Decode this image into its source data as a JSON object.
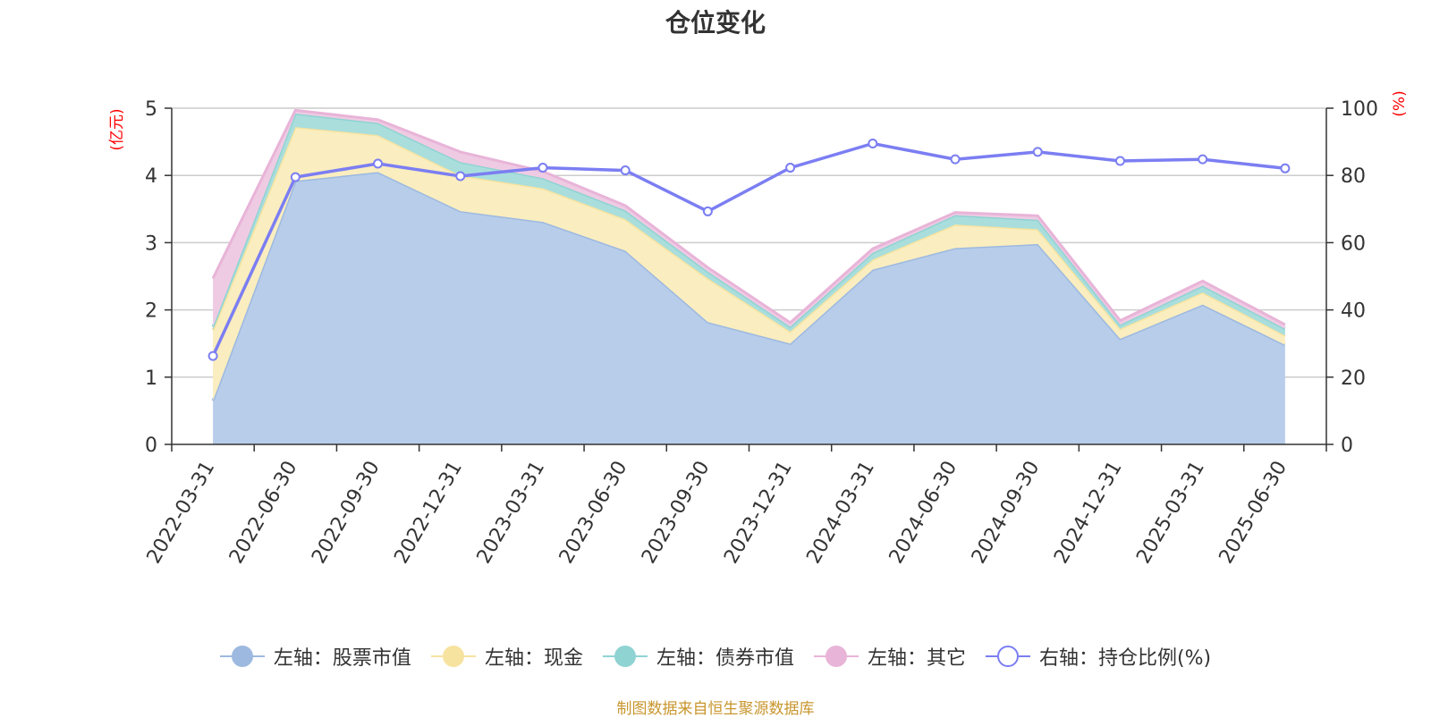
{
  "chart_data": {
    "type": "area",
    "title": "仓位变化",
    "left_unit": "(亿元)",
    "right_unit": "(%)",
    "source": "制图数据来自恒生聚源数据库",
    "x": [
      "2022-03-31",
      "2022-06-30",
      "2022-09-30",
      "2022-12-31",
      "2023-03-31",
      "2023-06-30",
      "2023-09-30",
      "2023-12-31",
      "2024-03-31",
      "2024-06-30",
      "2024-09-30",
      "2024-12-31",
      "2025-03-31",
      "2025-06-30"
    ],
    "left_axis": {
      "ylim": [
        0,
        5
      ],
      "ticks": [
        "0",
        "1",
        "2",
        "3",
        "4",
        "5"
      ]
    },
    "right_axis": {
      "ylim": [
        0,
        100
      ],
      "ticks": [
        "0",
        "20",
        "40",
        "60",
        "80",
        "100"
      ]
    },
    "stacked_series": [
      {
        "name": "左轴：股票市值",
        "color": "#9db9e0",
        "fill": "#b7cdea",
        "values": [
          0.65,
          3.92,
          4.05,
          3.47,
          3.31,
          2.88,
          1.82,
          1.5,
          2.6,
          2.92,
          2.98,
          1.57,
          2.08,
          1.48
        ]
      },
      {
        "name": "左轴：现金",
        "color": "#f7e3a0",
        "fill": "#faedbf",
        "values": [
          1.05,
          0.8,
          0.55,
          0.53,
          0.5,
          0.47,
          0.65,
          0.18,
          0.15,
          0.35,
          0.22,
          0.15,
          0.18,
          0.14
        ]
      },
      {
        "name": "左轴：债券市值",
        "color": "#8fd3d3",
        "fill": "#a9dedc",
        "values": [
          0.05,
          0.2,
          0.18,
          0.2,
          0.15,
          0.13,
          0.1,
          0.07,
          0.1,
          0.14,
          0.14,
          0.06,
          0.1,
          0.1
        ]
      },
      {
        "name": "左轴：其它",
        "color": "#e8b4d8",
        "fill": "#efcbe3",
        "values": [
          0.72,
          0.05,
          0.05,
          0.15,
          0.1,
          0.07,
          0.06,
          0.06,
          0.06,
          0.04,
          0.06,
          0.06,
          0.07,
          0.06
        ]
      }
    ],
    "line_series": {
      "name": "右轴：持仓比例(%)",
      "color": "#7b7ef2",
      "values": [
        26.3,
        79.5,
        83.5,
        79.8,
        82.3,
        81.5,
        69.3,
        82.3,
        89.5,
        84.8,
        87.0,
        84.3,
        84.8,
        82.1
      ]
    }
  }
}
